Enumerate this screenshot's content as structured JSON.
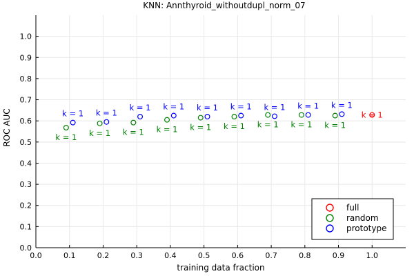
{
  "chart_data": {
    "type": "scatter",
    "title": "KNN: Annthyroid_withoutdupl_norm_07",
    "xlabel": "training data fraction",
    "ylabel": "ROC AUC",
    "xlim": [
      0.0,
      1.1
    ],
    "ylim": [
      0.0,
      1.1
    ],
    "xticks": [
      "0.0",
      "0.1",
      "0.2",
      "0.3",
      "0.4",
      "0.5",
      "0.6",
      "0.7",
      "0.8",
      "0.9",
      "1.0"
    ],
    "yticks": [
      "0.0",
      "0.1",
      "0.2",
      "0.3",
      "0.4",
      "0.5",
      "0.6",
      "0.7",
      "0.8",
      "0.9",
      "1.0"
    ],
    "grid": true,
    "legend_position": "bottom-right",
    "series": [
      {
        "name": "full",
        "color": "#ff0000",
        "x": [
          1.0
        ],
        "y": [
          0.628
        ],
        "labels": [
          "k = 1"
        ],
        "label_position": "right"
      },
      {
        "name": "random",
        "color": "#008000",
        "x": [
          0.09,
          0.19,
          0.29,
          0.39,
          0.49,
          0.59,
          0.69,
          0.79,
          0.89
        ],
        "y": [
          0.568,
          0.588,
          0.592,
          0.605,
          0.615,
          0.62,
          0.628,
          0.628,
          0.625
        ],
        "labels": [
          "k = 1",
          "k = 1",
          "k = 1",
          "k = 1",
          "k = 1",
          "k = 1",
          "k = 1",
          "k = 1",
          "k = 1"
        ],
        "label_position": "below"
      },
      {
        "name": "prototype",
        "color": "#0000ff",
        "x": [
          0.11,
          0.21,
          0.31,
          0.41,
          0.51,
          0.61,
          0.71,
          0.81,
          0.91
        ],
        "y": [
          0.592,
          0.595,
          0.62,
          0.625,
          0.62,
          0.625,
          0.622,
          0.628,
          0.632
        ],
        "labels": [
          "k = 1",
          "k = 1",
          "k = 1",
          "k = 1",
          "k = 1",
          "k = 1",
          "k = 1",
          "k = 1",
          "k = 1"
        ],
        "label_position": "above"
      }
    ]
  }
}
